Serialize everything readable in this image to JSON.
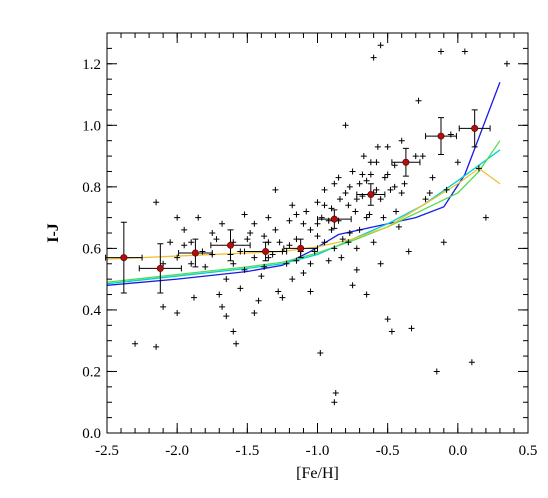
{
  "chart_data": {
    "type": "scatter",
    "title": "",
    "xlabel": "[Fe/H]",
    "ylabel": "I-J",
    "xlim": [
      -2.5,
      0.5
    ],
    "ylim": [
      0.0,
      1.3
    ],
    "grid": false,
    "x_ticks": [
      "-2.5",
      "-2.0",
      "-1.5",
      "-1.0",
      "-0.5",
      "0.0",
      "0.5"
    ],
    "y_ticks": [
      "0.0",
      "0.2",
      "0.4",
      "0.6",
      "0.8",
      "1.0",
      "1.2"
    ],
    "x_tick_values": [
      -2.5,
      -2.0,
      -1.5,
      -1.0,
      -0.5,
      0.0,
      0.5
    ],
    "y_tick_values": [
      0.0,
      0.2,
      0.4,
      0.6,
      0.8,
      1.0,
      1.2
    ],
    "colors": {
      "scatter": "#000000",
      "binned_points": "#b01010",
      "model_blue": "#1a1ae6",
      "model_cyan": "#00d2d2",
      "model_green": "#50dc50",
      "model_orange": "#f0c030"
    },
    "scatter_points": [
      [
        -2.3,
        0.29
      ],
      [
        -2.15,
        0.28
      ],
      [
        -2.1,
        0.41
      ],
      [
        -2.1,
        0.55
      ],
      [
        -2.0,
        0.39
      ],
      [
        -1.95,
        0.61
      ],
      [
        -2.15,
        0.75
      ],
      [
        -2.05,
        0.62
      ],
      [
        -2.0,
        0.7
      ],
      [
        -1.95,
        0.66
      ],
      [
        -1.9,
        0.62
      ],
      [
        -1.88,
        0.44
      ],
      [
        -1.8,
        0.54
      ],
      [
        -1.82,
        0.59
      ],
      [
        -1.75,
        0.65
      ],
      [
        -1.72,
        0.63
      ],
      [
        -1.7,
        0.45
      ],
      [
        -1.68,
        0.41
      ],
      [
        -1.65,
        0.38
      ],
      [
        -1.65,
        0.5
      ],
      [
        -1.62,
        0.58
      ],
      [
        -1.6,
        0.62
      ],
      [
        -1.6,
        0.33
      ],
      [
        -1.58,
        0.29
      ],
      [
        -1.55,
        0.47
      ],
      [
        -1.55,
        0.59
      ],
      [
        -1.52,
        0.53
      ],
      [
        -1.5,
        0.63
      ],
      [
        -1.48,
        0.65
      ],
      [
        -1.45,
        0.68
      ],
      [
        -1.45,
        0.39
      ],
      [
        -1.42,
        0.43
      ],
      [
        -1.4,
        0.51
      ],
      [
        -1.38,
        0.54
      ],
      [
        -1.35,
        0.62
      ],
      [
        -1.35,
        0.7
      ],
      [
        -1.32,
        0.58
      ],
      [
        -1.3,
        0.66
      ],
      [
        -1.3,
        0.79
      ],
      [
        -1.28,
        0.46
      ],
      [
        -1.25,
        0.44
      ],
      [
        -1.22,
        0.55
      ],
      [
        -1.2,
        0.61
      ],
      [
        -1.2,
        0.69
      ],
      [
        -1.18,
        0.74
      ],
      [
        -1.15,
        0.63
      ],
      [
        -1.12,
        0.59
      ],
      [
        -1.1,
        0.68
      ],
      [
        -1.1,
        0.52
      ],
      [
        -1.08,
        0.72
      ],
      [
        -1.05,
        0.66
      ],
      [
        -1.05,
        0.46
      ],
      [
        -1.02,
        0.59
      ],
      [
        -1.0,
        0.68
      ],
      [
        -1.0,
        0.75
      ],
      [
        -0.98,
        0.26
      ],
      [
        -0.97,
        0.7
      ],
      [
        -0.95,
        0.62
      ],
      [
        -0.95,
        0.79
      ],
      [
        -0.92,
        0.56
      ],
      [
        -0.9,
        0.73
      ],
      [
        -0.9,
        0.66
      ],
      [
        -0.88,
        0.81
      ],
      [
        -0.88,
        0.1
      ],
      [
        -0.87,
        0.13
      ],
      [
        -0.85,
        0.83
      ],
      [
        -0.85,
        0.69
      ],
      [
        -0.83,
        0.57
      ],
      [
        -0.82,
        0.63
      ],
      [
        -0.8,
        0.78
      ],
      [
        -0.8,
        1.0
      ],
      [
        -0.78,
        0.74
      ],
      [
        -0.77,
        0.65
      ],
      [
        -0.75,
        0.85
      ],
      [
        -0.75,
        0.48
      ],
      [
        -0.73,
        0.72
      ],
      [
        -0.72,
        0.53
      ],
      [
        -0.7,
        0.81
      ],
      [
        -0.7,
        0.66
      ],
      [
        -0.68,
        0.77
      ],
      [
        -0.67,
        0.9
      ],
      [
        -0.65,
        0.45
      ],
      [
        -0.63,
        0.71
      ],
      [
        -0.62,
        0.88
      ],
      [
        -0.6,
        1.22
      ],
      [
        -0.58,
        0.79
      ],
      [
        -0.57,
        0.93
      ],
      [
        -0.55,
        1.26
      ],
      [
        -0.53,
        0.7
      ],
      [
        -0.52,
        0.83
      ],
      [
        -0.5,
        0.37
      ],
      [
        -0.5,
        0.93
      ],
      [
        -0.48,
        0.79
      ],
      [
        -0.47,
        0.33
      ],
      [
        -0.45,
        0.87
      ],
      [
        -0.44,
        0.72
      ],
      [
        -0.42,
        0.67
      ],
      [
        -0.4,
        0.95
      ],
      [
        -0.38,
        0.81
      ],
      [
        -0.35,
        0.59
      ],
      [
        -0.33,
        0.34
      ],
      [
        -0.3,
        0.9
      ],
      [
        -0.28,
        1.08
      ],
      [
        -0.25,
        0.9
      ],
      [
        -0.23,
        0.76
      ],
      [
        -0.2,
        0.78
      ],
      [
        -0.18,
        0.83
      ],
      [
        -0.15,
        0.2
      ],
      [
        -0.12,
        1.24
      ],
      [
        -0.1,
        0.62
      ],
      [
        -0.08,
        0.79
      ],
      [
        -0.05,
        0.97
      ],
      [
        0.0,
        0.88
      ],
      [
        0.05,
        1.24
      ],
      [
        0.1,
        0.23
      ],
      [
        0.15,
        0.86
      ],
      [
        0.2,
        0.7
      ],
      [
        0.35,
        1.2
      ],
      [
        -1.35,
        0.57
      ],
      [
        -1.27,
        0.62
      ],
      [
        -1.15,
        0.71
      ],
      [
        -1.0,
        0.64
      ],
      [
        -0.95,
        0.74
      ],
      [
        -0.92,
        0.69
      ],
      [
        -0.84,
        0.76
      ],
      [
        -0.77,
        0.8
      ],
      [
        -0.72,
        0.76
      ],
      [
        -0.65,
        0.82
      ],
      [
        -0.6,
        0.78
      ],
      [
        -0.55,
        0.76
      ],
      [
        -0.5,
        0.84
      ],
      [
        -0.45,
        0.8
      ],
      [
        -0.4,
        0.78
      ],
      [
        -0.62,
        0.84
      ],
      [
        -0.68,
        0.84
      ],
      [
        -0.58,
        0.88
      ],
      [
        -1.05,
        0.55
      ],
      [
        -1.15,
        0.56
      ],
      [
        -1.25,
        0.59
      ],
      [
        -1.45,
        0.57
      ],
      [
        -1.6,
        0.55
      ],
      [
        -1.75,
        0.58
      ],
      [
        -2.0,
        0.57
      ],
      [
        -0.88,
        0.6
      ],
      [
        -0.78,
        0.62
      ],
      [
        -0.72,
        0.6
      ],
      [
        -0.6,
        0.62
      ],
      [
        -0.55,
        0.55
      ],
      [
        -0.65,
        0.7
      ],
      [
        -1.18,
        0.5
      ],
      [
        -1.38,
        0.64
      ],
      [
        -1.52,
        0.71
      ],
      [
        -1.68,
        0.68
      ],
      [
        -1.85,
        0.7
      ],
      [
        -1.9,
        0.55
      ]
    ],
    "binned_points": [
      {
        "x": -2.38,
        "y": 0.57,
        "xerr": 0.13,
        "yerr": 0.115
      },
      {
        "x": -2.12,
        "y": 0.535,
        "xerr": 0.15,
        "yerr": 0.08
      },
      {
        "x": -1.87,
        "y": 0.585,
        "xerr": 0.12,
        "yerr": 0.045
      },
      {
        "x": -1.62,
        "y": 0.61,
        "xerr": 0.14,
        "yerr": 0.05
      },
      {
        "x": -1.37,
        "y": 0.59,
        "xerr": 0.15,
        "yerr": 0.03
      },
      {
        "x": -1.12,
        "y": 0.6,
        "xerr": 0.12,
        "yerr": 0.03
      },
      {
        "x": -0.88,
        "y": 0.695,
        "xerr": 0.12,
        "yerr": 0.03
      },
      {
        "x": -0.62,
        "y": 0.775,
        "xerr": 0.1,
        "yerr": 0.035
      },
      {
        "x": -0.37,
        "y": 0.88,
        "xerr": 0.1,
        "yerr": 0.045
      },
      {
        "x": -0.12,
        "y": 0.965,
        "xerr": 0.11,
        "yerr": 0.06
      },
      {
        "x": 0.12,
        "y": 0.99,
        "xerr": 0.11,
        "yerr": 0.06
      }
    ],
    "series": [
      {
        "color_key": "model_blue",
        "x": [
          -2.5,
          -2.0,
          -1.5,
          -1.25,
          -1.05,
          -0.85,
          -0.65,
          -0.45,
          -0.3,
          -0.1,
          0.05,
          0.15,
          0.3
        ],
        "y": [
          0.48,
          0.5,
          0.525,
          0.545,
          0.59,
          0.645,
          0.665,
          0.685,
          0.7,
          0.735,
          0.84,
          0.96,
          1.14
        ]
      },
      {
        "color_key": "model_cyan",
        "x": [
          -2.5,
          -2.0,
          -1.5,
          -1.25,
          -1.0,
          -0.75,
          -0.5,
          -0.25,
          0.0,
          0.15,
          0.3
        ],
        "y": [
          0.485,
          0.51,
          0.535,
          0.55,
          0.58,
          0.63,
          0.68,
          0.74,
          0.82,
          0.87,
          0.92
        ]
      },
      {
        "color_key": "model_green",
        "x": [
          -2.5,
          -2.0,
          -1.5,
          -1.25,
          -1.0,
          -0.75,
          -0.5,
          -0.25,
          0.0,
          0.15,
          0.3
        ],
        "y": [
          0.49,
          0.515,
          0.54,
          0.555,
          0.585,
          0.625,
          0.67,
          0.725,
          0.78,
          0.85,
          0.95
        ]
      },
      {
        "color_key": "model_orange",
        "x": [
          -2.5,
          -2.0,
          -1.5,
          -1.25,
          -1.0,
          -0.75,
          -0.5,
          -0.25,
          0.0,
          0.15,
          0.3
        ],
        "y": [
          0.565,
          0.575,
          0.585,
          0.59,
          0.605,
          0.63,
          0.67,
          0.74,
          0.81,
          0.86,
          0.81
        ]
      }
    ]
  }
}
